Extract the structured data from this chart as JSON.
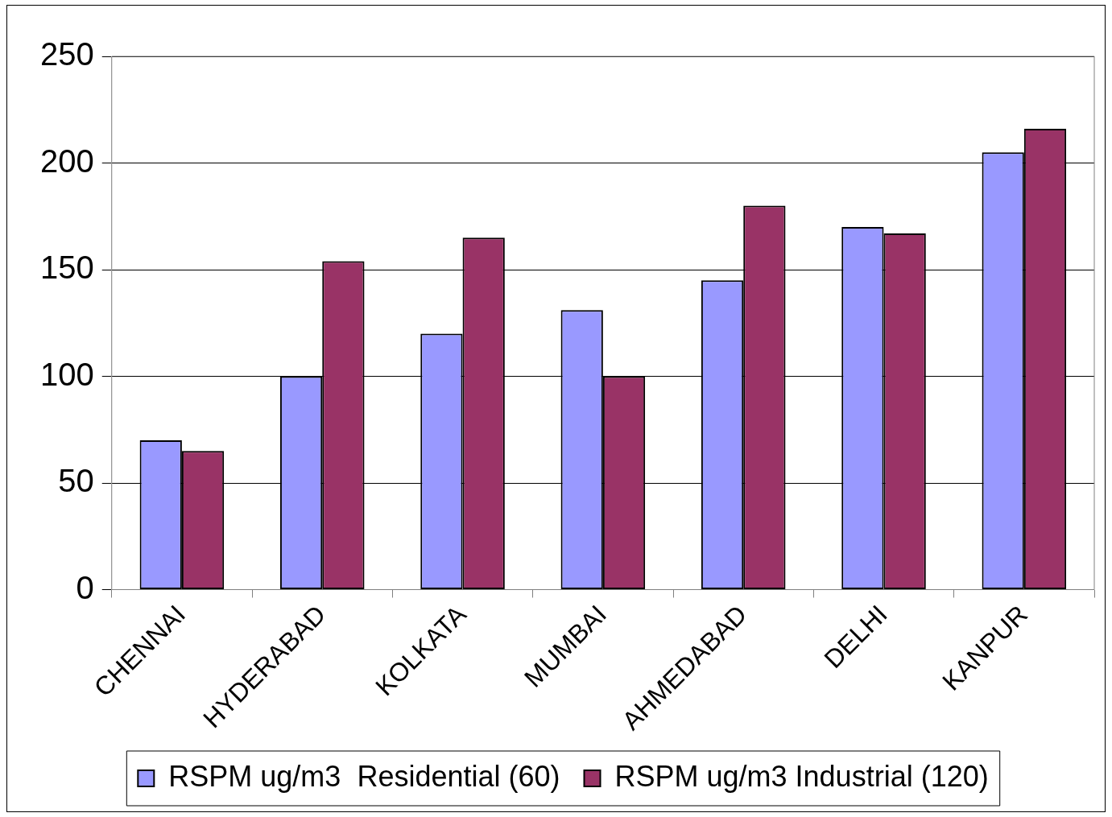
{
  "chart_data": {
    "type": "bar",
    "categories": [
      "CHENNAI",
      "HYDERABAD",
      "KOLKATA",
      "MUMBAI",
      "AHMEDABAD",
      "DELHI",
      "KANPUR"
    ],
    "series": [
      {
        "name": "RSPM ug/m3  Residential (60)",
        "color": "#9999ff",
        "values": [
          70,
          100,
          120,
          131,
          145,
          170,
          205
        ]
      },
      {
        "name": "RSPM ug/m3 Industrial (120)",
        "color": "#993366",
        "values": [
          65,
          154,
          165,
          100,
          180,
          167,
          216
        ]
      }
    ],
    "ylim": [
      0,
      250
    ],
    "yticks": [
      0,
      50,
      100,
      150,
      200,
      250
    ],
    "grid": "y",
    "legend": "bottom"
  }
}
